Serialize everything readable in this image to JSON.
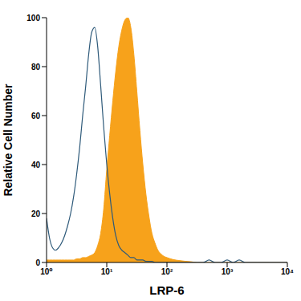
{
  "chart_data": {
    "type": "area",
    "x_label": "LRP-6",
    "y_label": "Relative Cell Number",
    "log": "x",
    "grid": false,
    "xlim": [
      1,
      10000
    ],
    "xticks": [
      {
        "value": 1,
        "label": "10⁰"
      },
      {
        "value": 10,
        "label": "10¹"
      },
      {
        "value": 100,
        "label": "10²"
      },
      {
        "value": 1000,
        "label": "10³"
      },
      {
        "value": 10000,
        "label": "10⁴"
      }
    ],
    "ylim": [
      0,
      100
    ],
    "yticks": [
      0,
      20,
      40,
      60,
      80,
      100
    ],
    "x": [
      1,
      1.12,
      1.26,
      1.41,
      1.58,
      1.78,
      2,
      2.24,
      2.51,
      2.82,
      3.16,
      3.55,
      3.98,
      4.47,
      5.01,
      5.62,
      6.31,
      7.08,
      7.94,
      8.91,
      10,
      11.2,
      12.6,
      14.1,
      15.8,
      17.8,
      20,
      22.4,
      25.1,
      28.2,
      31.6,
      35.5,
      39.8,
      44.7,
      50.1,
      56.2,
      63.1,
      70.8,
      79.4,
      89.1,
      100,
      126,
      158,
      200,
      251,
      316,
      398,
      501,
      631,
      794,
      1000,
      1259,
      1585,
      2000,
      3162,
      5012,
      10000
    ],
    "series": [
      {
        "type": "line",
        "color": "#2e5a7a",
        "values": [
          18,
          10,
          6,
          5,
          6,
          8,
          11,
          15,
          20,
          27,
          36,
          47,
          60,
          72,
          85,
          94,
          96,
          88,
          72,
          55,
          40,
          28,
          18,
          11,
          7,
          5,
          4,
          3,
          2,
          2,
          1,
          1,
          1,
          0.5,
          0.5,
          0.5,
          0,
          0,
          0,
          0,
          0,
          0,
          0,
          0,
          0,
          0,
          0,
          1,
          0,
          0,
          1,
          0,
          1,
          0,
          0,
          0,
          0
        ]
      },
      {
        "type": "area",
        "color": "#f7a21b",
        "values": [
          1,
          1,
          1,
          1,
          1,
          1,
          1,
          1,
          1,
          1,
          1.5,
          1.5,
          2,
          2,
          2.5,
          3,
          4,
          7,
          12,
          22,
          38,
          52,
          66,
          78,
          88,
          95,
          99,
          100,
          96,
          85,
          70,
          54,
          40,
          28,
          19,
          12,
          8,
          5,
          3.5,
          2.5,
          2,
          1.2,
          0.8,
          0.5,
          0.3,
          0,
          0,
          0,
          0,
          0,
          0,
          0,
          0,
          0,
          0,
          0,
          0
        ]
      }
    ]
  }
}
